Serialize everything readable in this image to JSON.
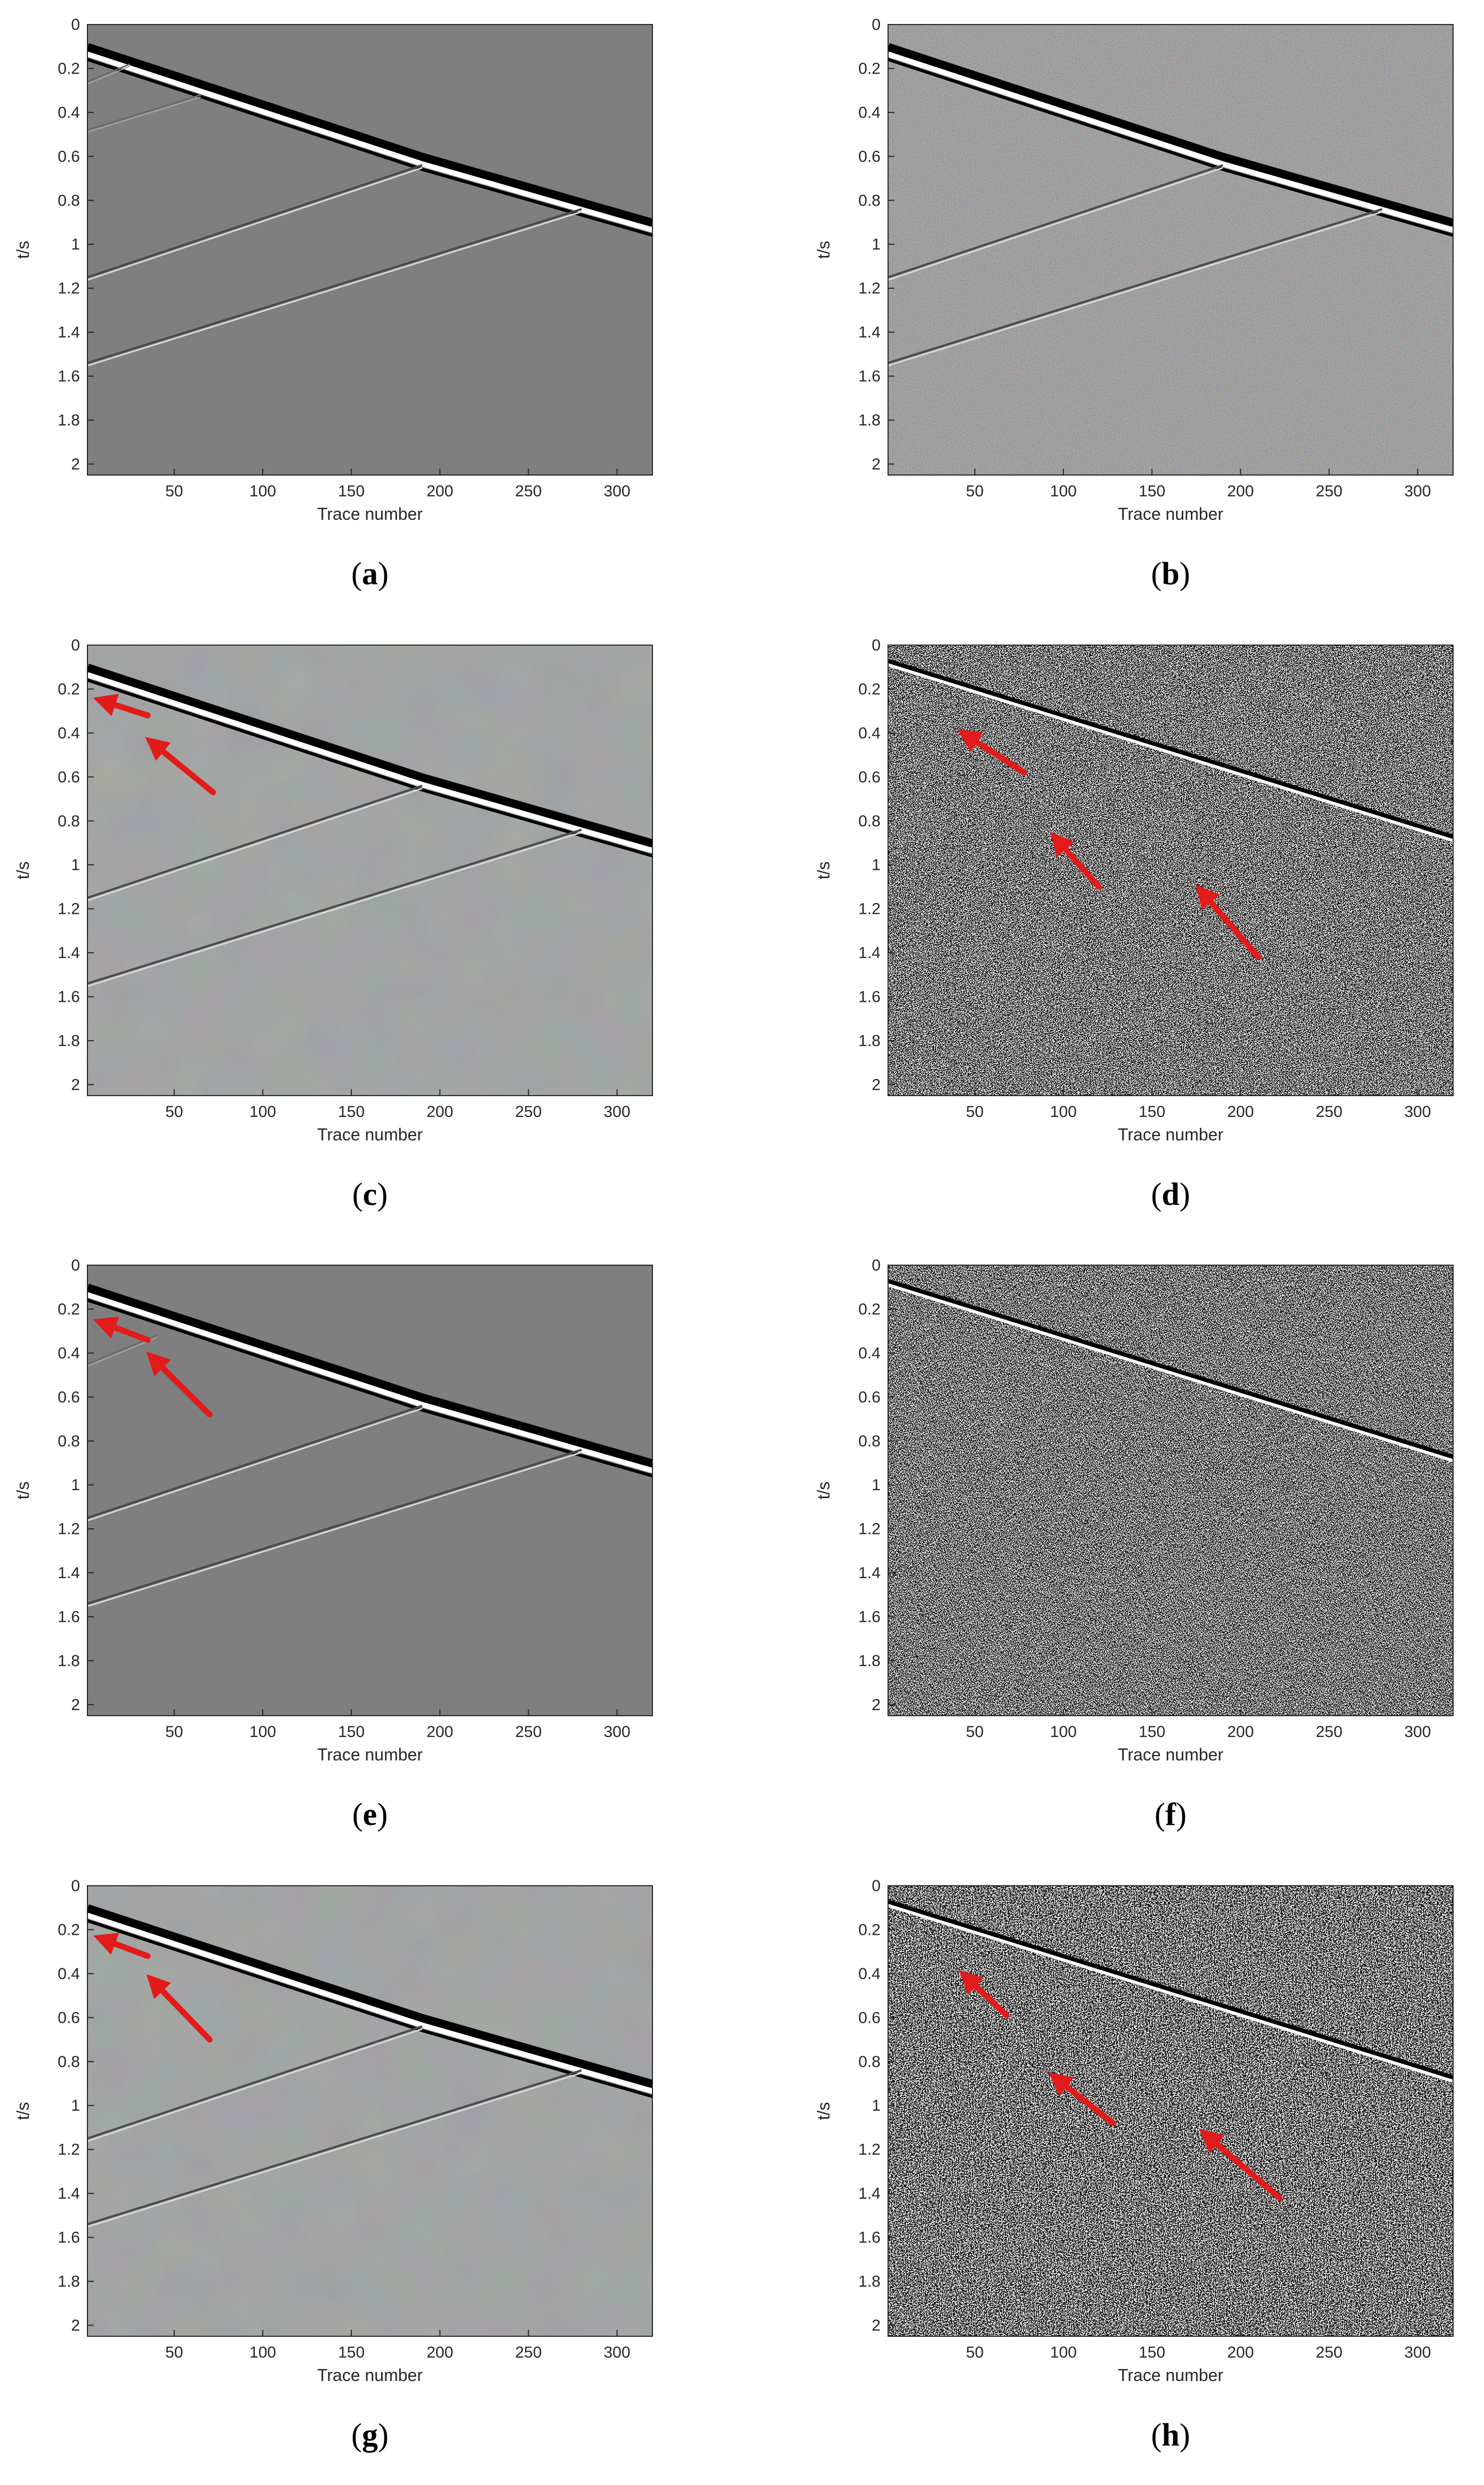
{
  "panel_captions": [
    "a",
    "b",
    "c",
    "d",
    "e",
    "f",
    "g",
    "h"
  ],
  "colors": {
    "gray_background": "#7f7f7f",
    "arrow_red": "#e21b1b",
    "axis": "#262626",
    "tick_label": "#262626",
    "caption_text": "#000000"
  },
  "chart_data": [
    {
      "type": "heatmap",
      "panel": "a",
      "style": "gray",
      "xlabel": "Trace number",
      "ylabel": "t/s",
      "xlim": [
        1,
        320
      ],
      "ylim": [
        2.05,
        0
      ],
      "xticks": [
        "50",
        "100",
        "150",
        "200",
        "250",
        "300"
      ],
      "yticks": [
        "0",
        "0.2",
        "0.4",
        "0.6",
        "0.8",
        "1",
        "1.2",
        "1.4",
        "1.6",
        "1.8",
        "2"
      ],
      "events": [
        {
          "x": [
            1,
            190,
            320
          ],
          "t": [
            0.12,
            0.62,
            0.92
          ],
          "strength": "strong"
        },
        {
          "x": [
            1,
            190
          ],
          "t": [
            1.15,
            0.64
          ],
          "strength": "weak"
        },
        {
          "x": [
            1,
            280
          ],
          "t": [
            1.54,
            0.84
          ],
          "strength": "weak"
        },
        {
          "x": [
            1,
            65
          ],
          "t": [
            0.48,
            0.32
          ],
          "strength": "faint"
        },
        {
          "x": [
            1,
            25
          ],
          "t": [
            0.26,
            0.18
          ],
          "strength": "faint"
        }
      ],
      "arrows": []
    },
    {
      "type": "heatmap",
      "panel": "b",
      "style": "color-noise",
      "xlabel": "Trace number",
      "ylabel": "t/s",
      "xlim": [
        1,
        320
      ],
      "ylim": [
        2.05,
        0
      ],
      "xticks": [
        "50",
        "100",
        "150",
        "200",
        "250",
        "300"
      ],
      "yticks": [
        "0",
        "0.2",
        "0.4",
        "0.6",
        "0.8",
        "1",
        "1.2",
        "1.4",
        "1.6",
        "1.8",
        "2"
      ],
      "events": [
        {
          "x": [
            1,
            190,
            320
          ],
          "t": [
            0.12,
            0.62,
            0.92
          ],
          "strength": "strong"
        },
        {
          "x": [
            1,
            190
          ],
          "t": [
            1.15,
            0.64
          ],
          "strength": "weak"
        },
        {
          "x": [
            1,
            280
          ],
          "t": [
            1.54,
            0.84
          ],
          "strength": "weak"
        }
      ],
      "arrows": []
    },
    {
      "type": "heatmap",
      "panel": "c",
      "style": "gray-smooth",
      "xlabel": "Trace number",
      "ylabel": "t/s",
      "xlim": [
        1,
        320
      ],
      "ylim": [
        2.05,
        0
      ],
      "xticks": [
        "50",
        "100",
        "150",
        "200",
        "250",
        "300"
      ],
      "yticks": [
        "0",
        "0.2",
        "0.4",
        "0.6",
        "0.8",
        "1",
        "1.2",
        "1.4",
        "1.6",
        "1.8",
        "2"
      ],
      "events": [
        {
          "x": [
            1,
            190,
            320
          ],
          "t": [
            0.12,
            0.62,
            0.92
          ],
          "strength": "strong"
        },
        {
          "x": [
            1,
            190
          ],
          "t": [
            1.15,
            0.64
          ],
          "strength": "weak"
        },
        {
          "x": [
            1,
            280
          ],
          "t": [
            1.54,
            0.84
          ],
          "strength": "weak"
        }
      ],
      "arrows": [
        {
          "from": [
            35,
            0.32
          ],
          "to": [
            12,
            0.26
          ]
        },
        {
          "from": [
            72,
            0.67
          ],
          "to": [
            40,
            0.46
          ]
        }
      ]
    },
    {
      "type": "heatmap",
      "panel": "d",
      "style": "bw-noise",
      "xlabel": "Trace number",
      "ylabel": "t/s",
      "xlim": [
        1,
        320
      ],
      "ylim": [
        2.05,
        0
      ],
      "xticks": [
        "50",
        "100",
        "150",
        "200",
        "250",
        "300"
      ],
      "yticks": [
        "0",
        "0.2",
        "0.4",
        "0.6",
        "0.8",
        "1",
        "1.2",
        "1.4",
        "1.6",
        "1.8",
        "2"
      ],
      "events": [
        {
          "x": [
            1,
            320
          ],
          "t": [
            0.08,
            0.88
          ],
          "strength": "strong"
        }
      ],
      "arrows": [
        {
          "from": [
            78,
            0.58
          ],
          "to": [
            47,
            0.42
          ]
        },
        {
          "from": [
            120,
            1.1
          ],
          "to": [
            98,
            0.9
          ]
        },
        {
          "from": [
            210,
            1.42
          ],
          "to": [
            180,
            1.14
          ]
        }
      ]
    },
    {
      "type": "heatmap",
      "panel": "e",
      "style": "gray",
      "xlabel": "Trace number",
      "ylabel": "t/s",
      "xlim": [
        1,
        320
      ],
      "ylim": [
        2.05,
        0
      ],
      "xticks": [
        "50",
        "100",
        "150",
        "200",
        "250",
        "300"
      ],
      "yticks": [
        "0",
        "0.2",
        "0.4",
        "0.6",
        "0.8",
        "1",
        "1.2",
        "1.4",
        "1.6",
        "1.8",
        "2"
      ],
      "events": [
        {
          "x": [
            1,
            190,
            320
          ],
          "t": [
            0.12,
            0.62,
            0.92
          ],
          "strength": "strong"
        },
        {
          "x": [
            1,
            190
          ],
          "t": [
            1.15,
            0.64
          ],
          "strength": "weak"
        },
        {
          "x": [
            1,
            280
          ],
          "t": [
            1.54,
            0.84
          ],
          "strength": "weak"
        },
        {
          "x": [
            1,
            40
          ],
          "t": [
            0.45,
            0.32
          ],
          "strength": "faint"
        }
      ],
      "arrows": [
        {
          "from": [
            35,
            0.34
          ],
          "to": [
            12,
            0.27
          ]
        },
        {
          "from": [
            70,
            0.68
          ],
          "to": [
            40,
            0.44
          ]
        }
      ]
    },
    {
      "type": "heatmap",
      "panel": "f",
      "style": "bw-noise",
      "xlabel": "Trace number",
      "ylabel": "t/s",
      "xlim": [
        1,
        320
      ],
      "ylim": [
        2.05,
        0
      ],
      "xticks": [
        "50",
        "100",
        "150",
        "200",
        "250",
        "300"
      ],
      "yticks": [
        "0",
        "0.2",
        "0.4",
        "0.6",
        "0.8",
        "1",
        "1.2",
        "1.4",
        "1.6",
        "1.8",
        "2"
      ],
      "events": [
        {
          "x": [
            1,
            320
          ],
          "t": [
            0.08,
            0.88
          ],
          "strength": "strong"
        }
      ],
      "arrows": []
    },
    {
      "type": "heatmap",
      "panel": "g",
      "style": "gray-smooth",
      "xlabel": "Trace number",
      "ylabel": "t/s",
      "xlim": [
        1,
        320
      ],
      "ylim": [
        2.05,
        0
      ],
      "xticks": [
        "50",
        "100",
        "150",
        "200",
        "250",
        "300"
      ],
      "yticks": [
        "0",
        "0.2",
        "0.4",
        "0.6",
        "0.8",
        "1",
        "1.2",
        "1.4",
        "1.6",
        "1.8",
        "2"
      ],
      "events": [
        {
          "x": [
            1,
            190,
            320
          ],
          "t": [
            0.12,
            0.62,
            0.92
          ],
          "strength": "strong"
        },
        {
          "x": [
            1,
            190
          ],
          "t": [
            1.15,
            0.64
          ],
          "strength": "weak"
        },
        {
          "x": [
            1,
            280
          ],
          "t": [
            1.54,
            0.84
          ],
          "strength": "weak"
        }
      ],
      "arrows": [
        {
          "from": [
            35,
            0.32
          ],
          "to": [
            12,
            0.25
          ]
        },
        {
          "from": [
            70,
            0.7
          ],
          "to": [
            40,
            0.45
          ]
        }
      ]
    },
    {
      "type": "heatmap",
      "panel": "h",
      "style": "bw-noise",
      "xlabel": "Trace number",
      "ylabel": "t/s",
      "xlim": [
        1,
        320
      ],
      "ylim": [
        2.05,
        0
      ],
      "xticks": [
        "50",
        "100",
        "150",
        "200",
        "250",
        "300"
      ],
      "yticks": [
        "0",
        "0.2",
        "0.4",
        "0.6",
        "0.8",
        "1",
        "1.2",
        "1.4",
        "1.6",
        "1.8",
        "2"
      ],
      "events": [
        {
          "x": [
            1,
            320
          ],
          "t": [
            0.08,
            0.88
          ],
          "strength": "strong"
        }
      ],
      "arrows": [
        {
          "from": [
            68,
            0.59
          ],
          "to": [
            47,
            0.43
          ]
        },
        {
          "from": [
            128,
            1.08
          ],
          "to": [
            98,
            0.89
          ]
        },
        {
          "from": [
            222,
            1.42
          ],
          "to": [
            183,
            1.15
          ]
        }
      ]
    }
  ]
}
